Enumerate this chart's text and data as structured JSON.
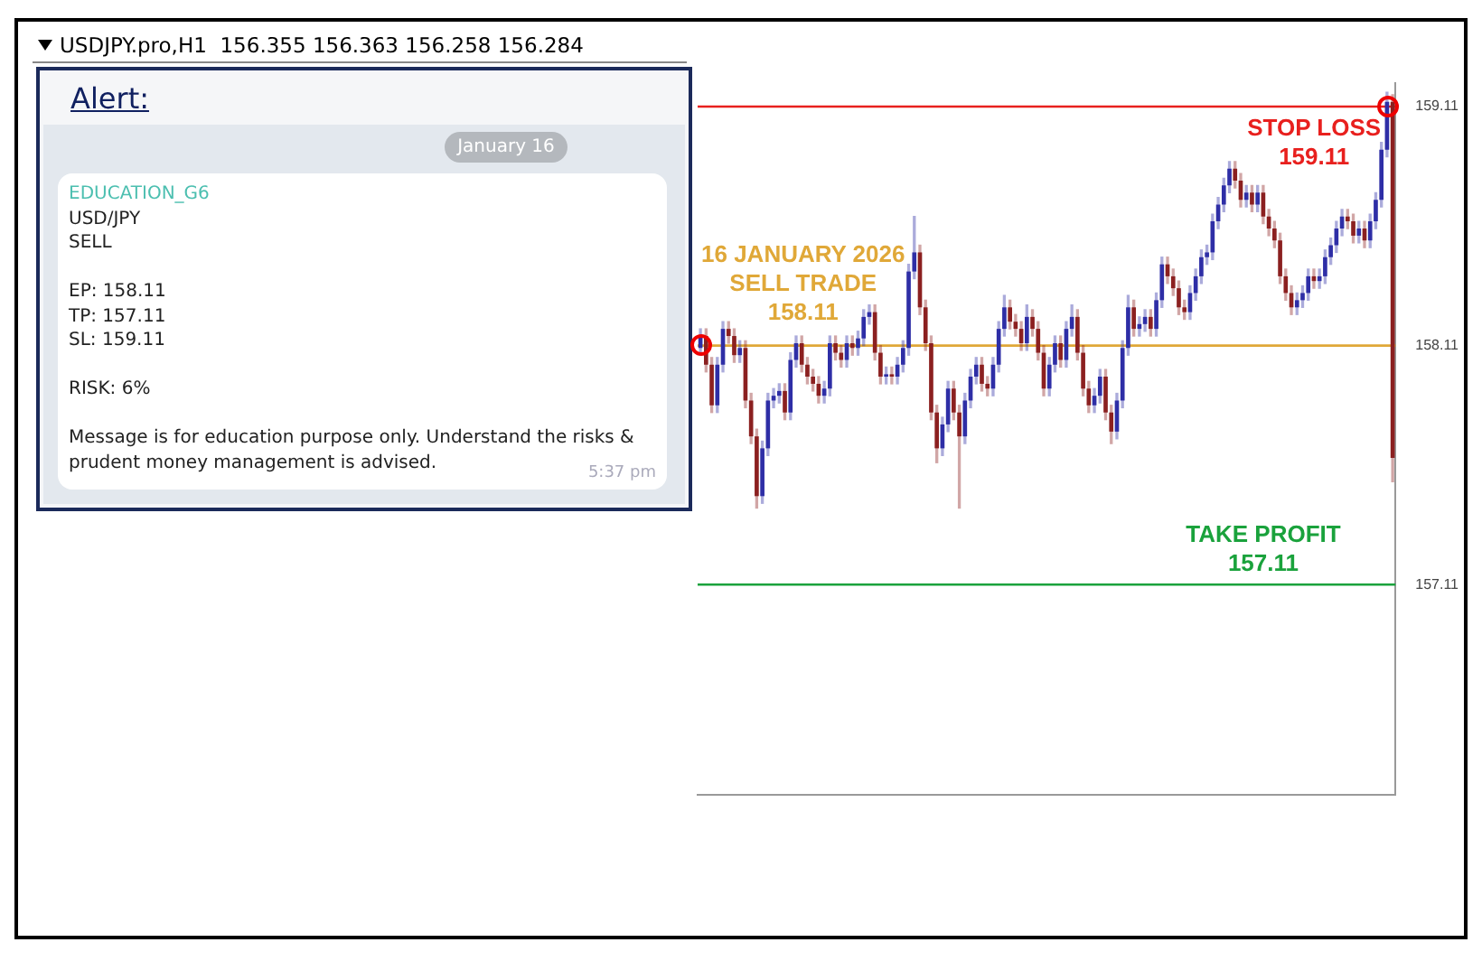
{
  "chart_data": {
    "type": "candlestick",
    "title": "USDJPY.pro,H1  156.355 156.363 156.258 156.284",
    "categories": [
      null,
      null,
      null,
      null,
      null,
      null,
      null,
      null,
      null,
      null,
      null,
      null,
      null,
      null,
      null,
      null,
      null,
      null,
      null,
      null,
      null,
      null,
      null,
      null,
      null,
      null,
      null,
      null,
      null,
      null,
      null,
      null,
      null,
      null,
      null,
      null,
      null,
      null,
      null,
      null,
      null,
      null,
      null,
      null,
      null,
      null,
      null,
      null,
      null,
      null,
      null,
      null,
      null,
      null,
      null,
      null,
      null,
      null,
      null,
      null,
      null,
      null,
      null,
      null,
      null,
      null,
      null,
      null,
      null,
      null,
      null,
      null,
      null,
      null,
      null,
      null,
      null,
      null,
      null,
      null,
      null,
      null,
      null,
      null,
      null,
      null,
      null,
      null,
      null,
      null,
      null,
      null,
      null,
      null,
      null,
      null,
      null,
      null,
      null,
      null,
      null,
      null,
      null,
      null,
      null,
      null,
      null,
      null,
      null,
      null,
      null,
      null,
      null,
      null,
      null,
      null,
      null,
      null,
      null,
      null,
      null,
      null,
      null,
      null
    ],
    "ohlc": [
      [
        158.1,
        158.18,
        158.07,
        158.15
      ],
      [
        158.15,
        158.18,
        158.0,
        158.03
      ],
      [
        158.03,
        158.06,
        157.83,
        157.86
      ],
      [
        157.86,
        158.06,
        157.83,
        158.03
      ],
      [
        158.03,
        158.21,
        158.0,
        158.18
      ],
      [
        158.18,
        158.21,
        158.12,
        158.15
      ],
      [
        158.15,
        158.18,
        158.04,
        158.07
      ],
      [
        158.07,
        158.13,
        158.04,
        158.1
      ],
      [
        158.1,
        158.13,
        157.85,
        157.88
      ],
      [
        157.88,
        157.91,
        157.7,
        157.73
      ],
      [
        157.73,
        157.76,
        157.43,
        157.48
      ],
      [
        157.48,
        157.71,
        157.45,
        157.68
      ],
      [
        157.68,
        157.91,
        157.65,
        157.88
      ],
      [
        157.88,
        157.93,
        157.85,
        157.9
      ],
      [
        157.9,
        157.95,
        157.87,
        157.92
      ],
      [
        157.92,
        157.95,
        157.8,
        157.83
      ],
      [
        157.83,
        158.08,
        157.8,
        158.05
      ],
      [
        158.05,
        158.15,
        158.02,
        158.12
      ],
      [
        158.12,
        158.15,
        158.0,
        158.03
      ],
      [
        158.03,
        158.06,
        157.95,
        157.98
      ],
      [
        157.98,
        158.01,
        157.92,
        157.95
      ],
      [
        157.95,
        157.98,
        157.87,
        157.9
      ],
      [
        157.9,
        157.96,
        157.87,
        157.93
      ],
      [
        157.93,
        158.15,
        157.9,
        158.12
      ],
      [
        158.12,
        158.15,
        158.05,
        158.08
      ],
      [
        158.08,
        158.11,
        158.02,
        158.05
      ],
      [
        158.05,
        158.15,
        158.02,
        158.12
      ],
      [
        158.12,
        158.15,
        158.07,
        158.1
      ],
      [
        158.1,
        158.17,
        158.07,
        158.14
      ],
      [
        158.14,
        158.26,
        158.11,
        158.23
      ],
      [
        158.23,
        158.28,
        158.2,
        158.25
      ],
      [
        158.25,
        158.28,
        158.05,
        158.08
      ],
      [
        158.08,
        158.11,
        157.95,
        157.98
      ],
      [
        157.98,
        158.02,
        157.95,
        157.99
      ],
      [
        157.99,
        158.02,
        157.95,
        157.98
      ],
      [
        157.98,
        158.06,
        157.95,
        158.03
      ],
      [
        158.03,
        158.13,
        158.0,
        158.1
      ],
      [
        158.1,
        158.45,
        158.07,
        158.42
      ],
      [
        158.42,
        158.65,
        158.39,
        158.5
      ],
      [
        158.5,
        158.53,
        158.24,
        158.27
      ],
      [
        158.27,
        158.3,
        158.09,
        158.12
      ],
      [
        158.12,
        158.15,
        157.8,
        157.83
      ],
      [
        157.83,
        157.86,
        157.62,
        157.68
      ],
      [
        157.68,
        157.81,
        157.65,
        157.78
      ],
      [
        157.78,
        157.96,
        157.75,
        157.93
      ],
      [
        157.93,
        157.96,
        157.8,
        157.83
      ],
      [
        157.83,
        157.86,
        157.43,
        157.73
      ],
      [
        157.73,
        157.91,
        157.7,
        157.88
      ],
      [
        157.88,
        158.01,
        157.85,
        157.98
      ],
      [
        157.98,
        158.06,
        157.95,
        158.03
      ],
      [
        158.03,
        158.06,
        157.92,
        157.95
      ],
      [
        157.95,
        157.98,
        157.9,
        157.93
      ],
      [
        157.93,
        158.06,
        157.9,
        158.03
      ],
      [
        158.03,
        158.21,
        158.0,
        158.18
      ],
      [
        158.18,
        158.32,
        158.15,
        158.27
      ],
      [
        158.27,
        158.3,
        158.18,
        158.21
      ],
      [
        158.21,
        158.24,
        158.15,
        158.18
      ],
      [
        158.18,
        158.21,
        158.09,
        158.12
      ],
      [
        158.12,
        158.28,
        158.09,
        158.23
      ],
      [
        158.23,
        158.26,
        158.15,
        158.18
      ],
      [
        158.18,
        158.21,
        158.05,
        158.08
      ],
      [
        158.08,
        158.11,
        157.9,
        157.93
      ],
      [
        157.93,
        158.06,
        157.9,
        158.03
      ],
      [
        158.03,
        158.15,
        158.0,
        158.12
      ],
      [
        158.12,
        158.15,
        158.02,
        158.05
      ],
      [
        158.05,
        158.21,
        158.02,
        158.18
      ],
      [
        158.18,
        158.28,
        158.15,
        158.23
      ],
      [
        158.23,
        158.26,
        158.05,
        158.08
      ],
      [
        158.08,
        158.11,
        157.9,
        157.93
      ],
      [
        157.93,
        157.96,
        157.83,
        157.86
      ],
      [
        157.86,
        157.93,
        157.83,
        157.9
      ],
      [
        157.9,
        158.01,
        157.87,
        157.98
      ],
      [
        157.98,
        158.01,
        157.8,
        157.83
      ],
      [
        157.83,
        157.86,
        157.7,
        157.75
      ],
      [
        157.75,
        157.91,
        157.72,
        157.88
      ],
      [
        157.88,
        158.13,
        157.85,
        158.1
      ],
      [
        158.1,
        158.32,
        158.07,
        158.27
      ],
      [
        158.27,
        158.3,
        158.15,
        158.18
      ],
      [
        158.18,
        158.23,
        158.15,
        158.2
      ],
      [
        158.2,
        158.26,
        158.17,
        158.23
      ],
      [
        158.23,
        158.26,
        158.15,
        158.18
      ],
      [
        158.18,
        158.33,
        158.15,
        158.3
      ],
      [
        158.3,
        158.48,
        158.27,
        158.45
      ],
      [
        158.45,
        158.48,
        158.37,
        158.4
      ],
      [
        158.4,
        158.43,
        158.32,
        158.35
      ],
      [
        158.35,
        158.38,
        158.24,
        158.27
      ],
      [
        158.27,
        158.3,
        158.22,
        158.25
      ],
      [
        158.25,
        158.36,
        158.22,
        158.33
      ],
      [
        158.33,
        158.43,
        158.3,
        158.4
      ],
      [
        158.4,
        158.51,
        158.37,
        158.48
      ],
      [
        158.48,
        158.53,
        158.45,
        158.5
      ],
      [
        158.5,
        158.66,
        158.47,
        158.63
      ],
      [
        158.63,
        158.73,
        158.6,
        158.7
      ],
      [
        158.7,
        158.81,
        158.67,
        158.78
      ],
      [
        158.78,
        158.88,
        158.75,
        158.85
      ],
      [
        158.85,
        158.88,
        158.77,
        158.8
      ],
      [
        158.8,
        158.83,
        158.69,
        158.72
      ],
      [
        158.72,
        158.78,
        158.69,
        158.75
      ],
      [
        158.75,
        158.78,
        158.67,
        158.7
      ],
      [
        158.7,
        158.78,
        158.67,
        158.75
      ],
      [
        158.75,
        158.78,
        158.62,
        158.65
      ],
      [
        158.65,
        158.68,
        158.57,
        158.6
      ],
      [
        158.6,
        158.63,
        158.52,
        158.55
      ],
      [
        158.55,
        158.58,
        158.37,
        158.4
      ],
      [
        158.4,
        158.43,
        158.3,
        158.33
      ],
      [
        158.33,
        158.36,
        158.24,
        158.27
      ],
      [
        158.27,
        158.33,
        158.24,
        158.3
      ],
      [
        158.3,
        158.36,
        158.27,
        158.33
      ],
      [
        158.33,
        158.43,
        158.3,
        158.4
      ],
      [
        158.4,
        158.43,
        158.35,
        158.38
      ],
      [
        158.38,
        158.43,
        158.35,
        158.4
      ],
      [
        158.4,
        158.51,
        158.37,
        158.48
      ],
      [
        158.48,
        158.56,
        158.45,
        158.53
      ],
      [
        158.53,
        158.63,
        158.5,
        158.6
      ],
      [
        158.6,
        158.68,
        158.57,
        158.65
      ],
      [
        158.65,
        158.68,
        158.6,
        158.63
      ],
      [
        158.63,
        158.66,
        158.54,
        158.57
      ],
      [
        158.57,
        158.63,
        158.54,
        158.6
      ],
      [
        158.6,
        158.63,
        158.52,
        158.55
      ],
      [
        158.55,
        158.66,
        158.52,
        158.63
      ],
      [
        158.63,
        158.75,
        158.6,
        158.72
      ],
      [
        158.72,
        158.96,
        158.69,
        158.93
      ],
      [
        158.93,
        159.17,
        158.9,
        159.13
      ],
      [
        159.13,
        159.16,
        157.54,
        157.64
      ]
    ],
    "colors": [
      "#2e2ea6",
      "#8b2020",
      "#8b2020",
      "#2e2ea6",
      "#2e2ea6",
      "#8b2020",
      "#8b2020",
      "#2e2ea6",
      "#8b2020",
      "#8b2020",
      "#8b2020",
      "#2e2ea6",
      "#2e2ea6",
      "#2e2ea6",
      "#2e2ea6",
      "#8b2020",
      "#2e2ea6",
      "#2e2ea6",
      "#8b2020",
      "#8b2020",
      "#8b2020",
      "#8b2020",
      "#2e2ea6",
      "#2e2ea6",
      "#8b2020",
      "#8b2020",
      "#2e2ea6",
      "#8b2020",
      "#2e2ea6",
      "#2e2ea6",
      "#2e2ea6",
      "#8b2020",
      "#8b2020",
      "#2e2ea6",
      "#8b2020",
      "#2e2ea6",
      "#2e2ea6",
      "#2e2ea6",
      "#2e2ea6",
      "#8b2020",
      "#8b2020",
      "#8b2020",
      "#8b2020",
      "#2e2ea6",
      "#2e2ea6",
      "#8b2020",
      "#8b2020",
      "#2e2ea6",
      "#2e2ea6",
      "#2e2ea6",
      "#8b2020",
      "#8b2020",
      "#2e2ea6",
      "#2e2ea6",
      "#2e2ea6",
      "#8b2020",
      "#8b2020",
      "#8b2020",
      "#2e2ea6",
      "#8b2020",
      "#8b2020",
      "#8b2020",
      "#2e2ea6",
      "#2e2ea6",
      "#8b2020",
      "#2e2ea6",
      "#2e2ea6",
      "#8b2020",
      "#8b2020",
      "#8b2020",
      "#2e2ea6",
      "#2e2ea6",
      "#8b2020",
      "#8b2020",
      "#2e2ea6",
      "#2e2ea6",
      "#2e2ea6",
      "#8b2020",
      "#2e2ea6",
      "#2e2ea6",
      "#8b2020",
      "#2e2ea6",
      "#2e2ea6",
      "#8b2020",
      "#8b2020",
      "#8b2020",
      "#8b2020",
      "#2e2ea6",
      "#2e2ea6",
      "#2e2ea6",
      "#2e2ea6",
      "#2e2ea6",
      "#2e2ea6",
      "#2e2ea6",
      "#2e2ea6",
      "#8b2020",
      "#8b2020",
      "#2e2ea6",
      "#8b2020",
      "#2e2ea6",
      "#8b2020",
      "#8b2020",
      "#8b2020",
      "#8b2020",
      "#8b2020",
      "#8b2020",
      "#2e2ea6",
      "#2e2ea6",
      "#2e2ea6",
      "#8b2020",
      "#2e2ea6",
      "#2e2ea6",
      "#2e2ea6",
      "#2e2ea6",
      "#2e2ea6",
      "#8b2020",
      "#8b2020",
      "#2e2ea6",
      "#8b2020",
      "#2e2ea6",
      "#2e2ea6",
      "#2e2ea6",
      "#2e2ea6",
      "#8b2020"
    ],
    "ylim": [
      156.23,
      159.21
    ],
    "yticks": [
      157.11,
      158.11,
      159.11
    ],
    "tick_labels": "y",
    "grid": false,
    "legend": false,
    "ref_lines": [
      {
        "axis": "y",
        "value": 159.11,
        "label": "STOP LOSS\n159.11",
        "color": "#e8201e"
      },
      {
        "axis": "y",
        "value": 158.11,
        "label": "16 JANUARY 2026\nSELL TRADE\n158.11",
        "color": "#e0a838"
      },
      {
        "axis": "y",
        "value": 157.11,
        "label": "TAKE PROFIT\n157.11",
        "color": "#1aa23c"
      }
    ],
    "annotations": [
      "Alert:",
      "January 16",
      "EDUCATION_G6",
      "USD/JPY",
      "SELL",
      "EP: 158.11",
      "TP: 157.11",
      "SL: 159.11",
      "RISK: 6%",
      "Message is for education purpose only. Understand the risks & prudent money management is advised.",
      "5:37 pm"
    ]
  }
}
